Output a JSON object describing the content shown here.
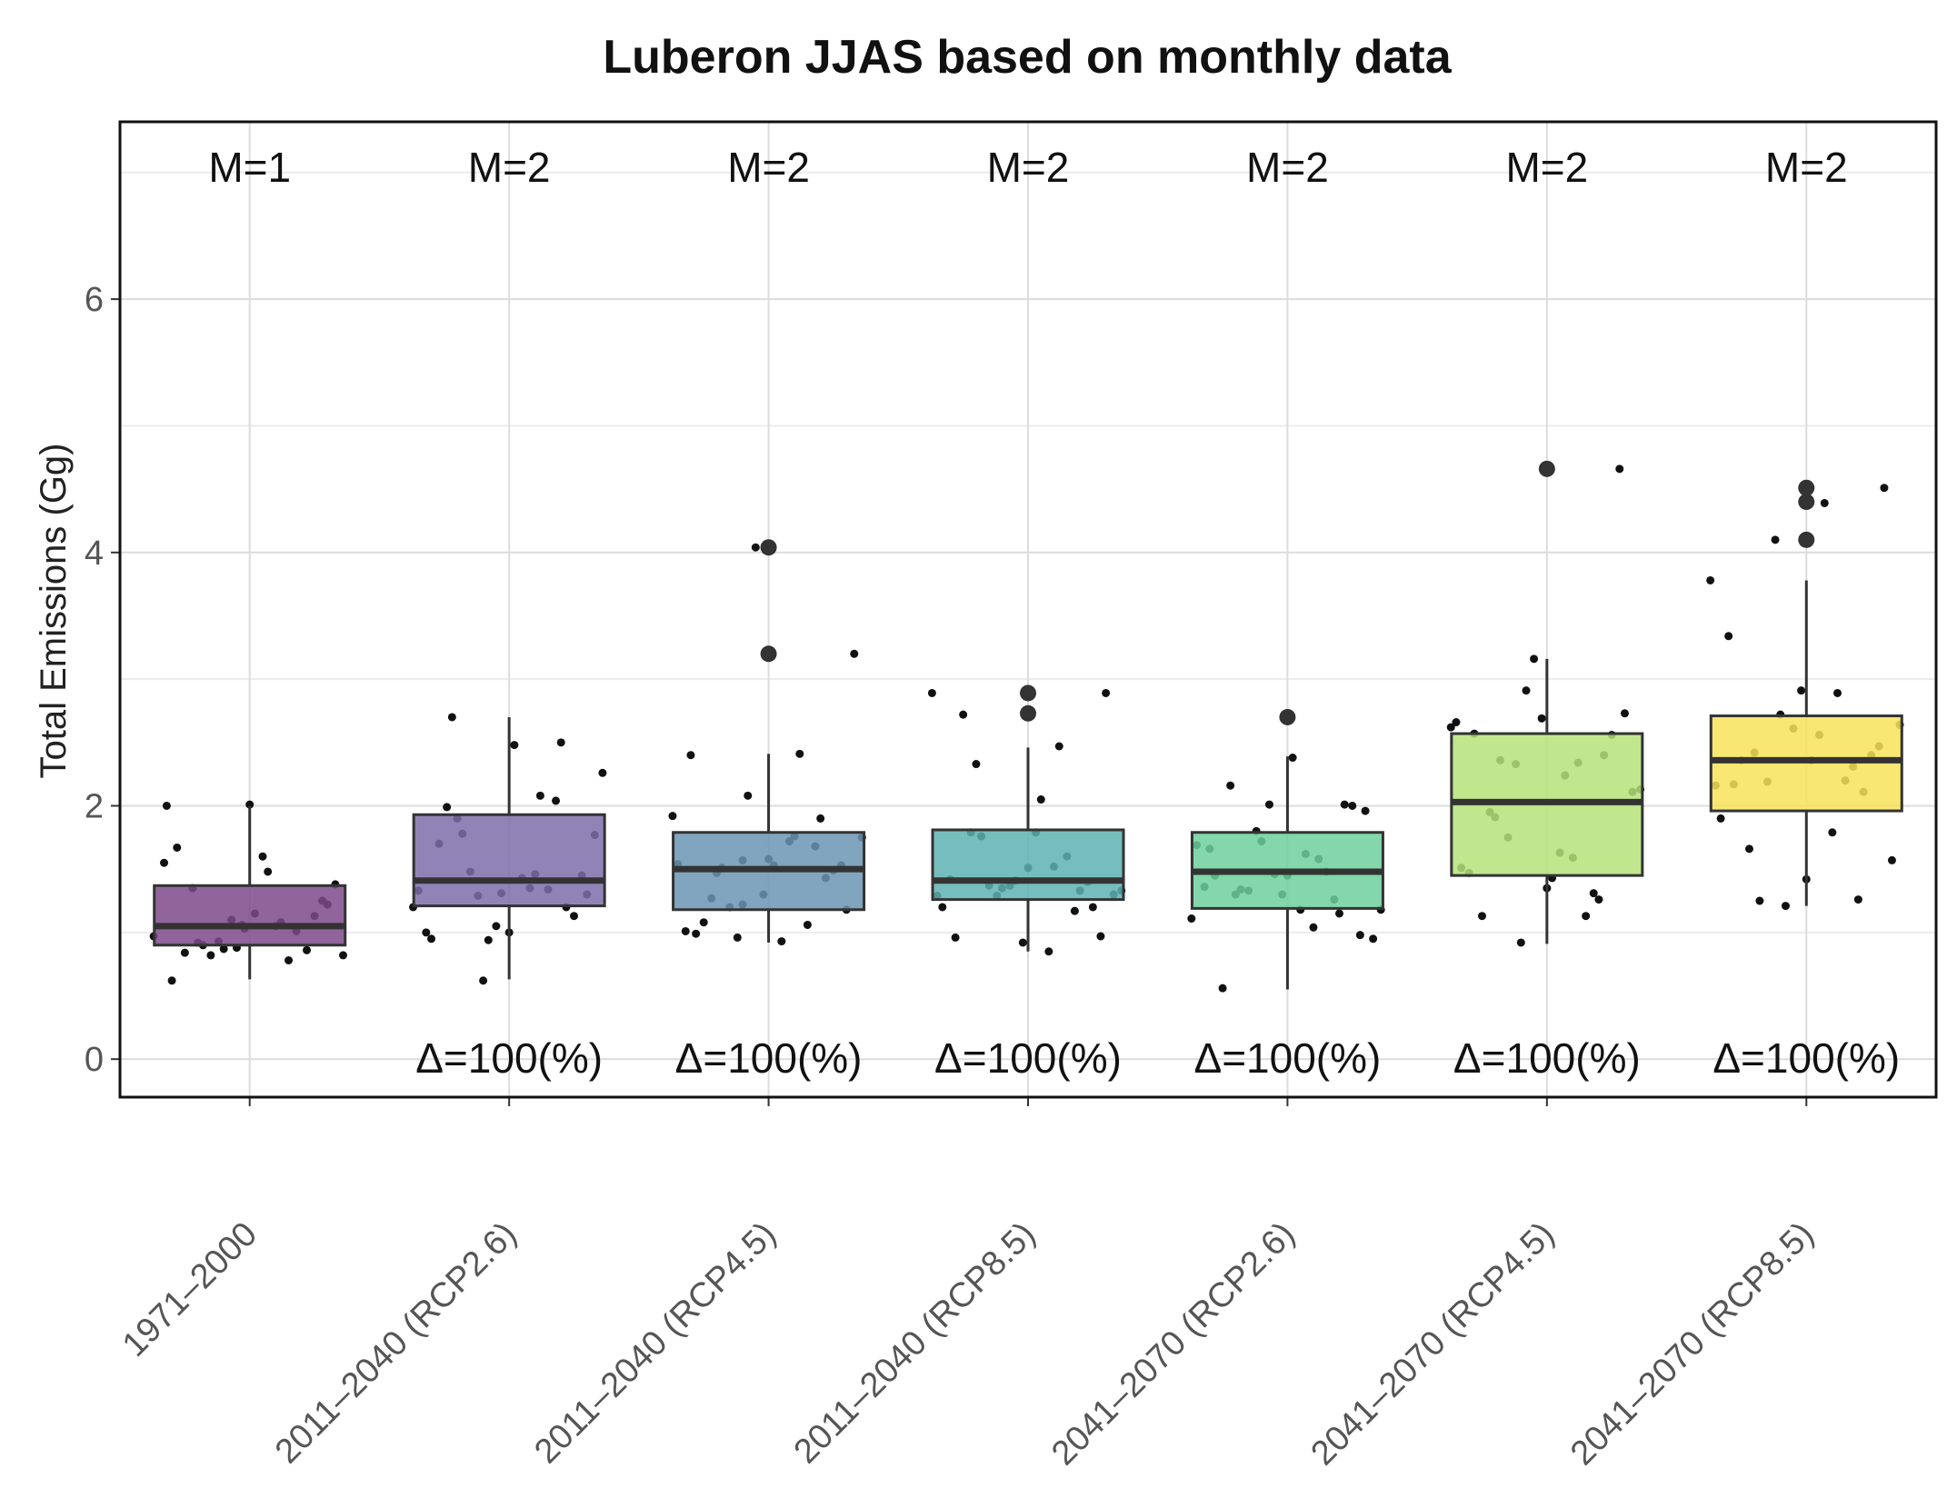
{
  "chart_data": {
    "type": "box",
    "title": "Luberon JJAS based on monthly data",
    "xlabel": "",
    "ylabel": "Total Emissions (Gg)",
    "ylim": [
      -0.3,
      7.4
    ],
    "yticks": [
      0,
      2,
      4,
      6
    ],
    "grid": true,
    "categories": [
      "1971–2000",
      "2011–2040 (RCP2.6)",
      "2011–2040 (RCP4.5)",
      "2011–2040 (RCP8.5)",
      "2041–2070 (RCP2.6)",
      "2041–2070 (RCP4.5)",
      "2041–2070 (RCP8.5)"
    ],
    "colors": [
      "#7e4a8a",
      "#7d6faa",
      "#6b95b4",
      "#5eb1b1",
      "#6dd09b",
      "#b5e27a",
      "#f7e35a"
    ],
    "top_labels": [
      "M=1",
      "M=2",
      "M=2",
      "M=2",
      "M=2",
      "M=2",
      "M=2"
    ],
    "bottom_labels": [
      "",
      "Δ=100(%)",
      "Δ=100(%)",
      "Δ=100(%)",
      "Δ=100(%)",
      "Δ=100(%)",
      "Δ=100(%)"
    ],
    "boxes": [
      {
        "q1": 0.9,
        "median": 1.05,
        "q3": 1.37,
        "whisker_low": 0.63,
        "whisker_high": 2.0,
        "outliers": []
      },
      {
        "q1": 1.21,
        "median": 1.41,
        "q3": 1.93,
        "whisker_low": 0.63,
        "whisker_high": 2.7,
        "outliers": []
      },
      {
        "q1": 1.18,
        "median": 1.5,
        "q3": 1.79,
        "whisker_low": 0.92,
        "whisker_high": 2.41,
        "outliers": [
          3.2,
          4.04
        ]
      },
      {
        "q1": 1.26,
        "median": 1.41,
        "q3": 1.81,
        "whisker_low": 0.85,
        "whisker_high": 2.46,
        "outliers": [
          2.73,
          2.89
        ]
      },
      {
        "q1": 1.19,
        "median": 1.48,
        "q3": 1.79,
        "whisker_low": 0.55,
        "whisker_high": 2.39,
        "outliers": [
          2.7
        ]
      },
      {
        "q1": 1.45,
        "median": 2.03,
        "q3": 2.57,
        "whisker_low": 0.91,
        "whisker_high": 3.16,
        "outliers": [
          4.66
        ]
      },
      {
        "q1": 1.96,
        "median": 2.36,
        "q3": 2.71,
        "whisker_low": 1.21,
        "whisker_high": 3.78,
        "outliers": [
          4.1,
          4.4,
          4.51
        ]
      }
    ],
    "points": [
      {
        "dx": [
          -0.37,
          -0.33,
          -0.32,
          -0.3,
          -0.28,
          -0.25,
          -0.22,
          -0.2,
          -0.18,
          -0.15,
          -0.12,
          -0.1,
          -0.07,
          -0.05,
          -0.03,
          0,
          0.02,
          0.05,
          0.07,
          0.1,
          0.12,
          0.15,
          0.18,
          0.22,
          0.25,
          0.28,
          0.3,
          0.33,
          0.36,
          -0.02
        ],
        "y": [
          0.97,
          1.55,
          2.0,
          0.62,
          1.67,
          0.84,
          1.35,
          0.92,
          0.9,
          0.82,
          0.93,
          0.87,
          1.1,
          0.88,
          1.06,
          2.01,
          1.15,
          1.6,
          1.48,
          1.05,
          1.08,
          0.78,
          1.01,
          0.86,
          1.13,
          1.25,
          1.22,
          1.38,
          0.82,
          1.03
        ]
      },
      {
        "dx": [
          -0.37,
          -0.35,
          -0.32,
          -0.3,
          -0.27,
          -0.24,
          -0.22,
          -0.2,
          -0.18,
          -0.15,
          -0.12,
          -0.1,
          -0.08,
          -0.05,
          -0.03,
          0,
          0.02,
          0.05,
          0.08,
          0.1,
          0.12,
          0.15,
          0.18,
          0.2,
          0.22,
          0.25,
          0.28,
          0.3,
          0.33,
          0.36
        ],
        "y": [
          1.2,
          1.33,
          1.0,
          0.95,
          1.7,
          1.99,
          2.7,
          1.9,
          1.78,
          1.48,
          1.29,
          0.62,
          0.94,
          1.05,
          1.31,
          1.0,
          2.48,
          1.43,
          1.35,
          1.46,
          2.08,
          1.34,
          2.04,
          2.5,
          1.2,
          1.13,
          1.45,
          1.3,
          1.77,
          2.26
        ]
      },
      {
        "dx": [
          -0.37,
          -0.35,
          -0.32,
          -0.3,
          -0.28,
          -0.25,
          -0.22,
          -0.2,
          -0.18,
          -0.15,
          -0.12,
          -0.1,
          -0.08,
          -0.05,
          -0.02,
          0,
          0.02,
          0.05,
          0.08,
          0.1,
          0.12,
          0.15,
          0.18,
          0.2,
          0.22,
          0.25,
          0.28,
          0.3,
          0.33,
          0.36,
          -0.1
        ],
        "y": [
          1.92,
          1.54,
          1.01,
          2.4,
          0.99,
          1.08,
          1.27,
          1.47,
          1.51,
          1.2,
          0.96,
          1.22,
          2.08,
          4.04,
          1.3,
          1.58,
          1.53,
          0.93,
          1.72,
          1.76,
          2.41,
          1.06,
          1.68,
          1.9,
          1.43,
          1.49,
          1.53,
          1.18,
          3.2,
          1.75,
          1.57
        ]
      },
      {
        "dx": [
          -0.37,
          -0.35,
          -0.33,
          -0.3,
          -0.28,
          -0.25,
          -0.22,
          -0.2,
          -0.18,
          -0.15,
          -0.12,
          -0.1,
          -0.07,
          -0.05,
          -0.02,
          0,
          0.03,
          0.05,
          0.08,
          0.1,
          0.12,
          0.15,
          0.18,
          0.2,
          0.23,
          0.25,
          0.28,
          0.3,
          0.33,
          0.36
        ],
        "y": [
          2.89,
          1.29,
          1.2,
          1.42,
          0.96,
          2.72,
          1.79,
          2.33,
          1.76,
          1.37,
          1.29,
          1.35,
          1.37,
          1.41,
          0.92,
          1.51,
          1.79,
          2.05,
          0.85,
          1.52,
          2.47,
          1.6,
          1.17,
          1.33,
          1.4,
          1.2,
          0.97,
          2.89,
          1.3,
          1.33
        ]
      },
      {
        "dx": [
          -0.37,
          -0.35,
          -0.32,
          -0.3,
          -0.28,
          -0.25,
          -0.22,
          -0.2,
          -0.18,
          -0.15,
          -0.12,
          -0.1,
          -0.07,
          -0.05,
          -0.02,
          0,
          0.02,
          0.05,
          0.07,
          0.1,
          0.12,
          0.15,
          0.18,
          0.2,
          0.22,
          0.25,
          0.28,
          0.3,
          0.33,
          0.36
        ],
        "y": [
          1.11,
          1.69,
          1.36,
          1.66,
          1.45,
          0.56,
          2.16,
          1.3,
          1.34,
          1.33,
          1.8,
          1.72,
          2.01,
          1.46,
          1.3,
          1.45,
          2.38,
          1.18,
          1.62,
          1.04,
          1.58,
          1.48,
          1.26,
          1.15,
          2.01,
          2.0,
          0.98,
          1.96,
          0.95,
          1.18
        ]
      },
      {
        "dx": [
          -0.37,
          -0.35,
          -0.33,
          -0.3,
          -0.28,
          -0.25,
          -0.22,
          -0.2,
          -0.18,
          -0.15,
          -0.12,
          -0.1,
          -0.08,
          -0.05,
          -0.02,
          0,
          0.02,
          0.05,
          0.07,
          0.1,
          0.12,
          0.15,
          0.18,
          0.2,
          0.22,
          0.25,
          0.28,
          0.3,
          0.33,
          0.36
        ],
        "y": [
          2.62,
          2.66,
          1.51,
          1.47,
          2.57,
          1.13,
          1.95,
          1.91,
          2.36,
          1.75,
          2.33,
          0.92,
          2.91,
          3.16,
          2.69,
          1.35,
          1.43,
          1.63,
          2.24,
          1.59,
          2.34,
          1.13,
          1.31,
          1.26,
          2.4,
          2.56,
          4.66,
          2.73,
          2.11,
          2.13
        ]
      },
      {
        "dx": [
          -0.37,
          -0.35,
          -0.33,
          -0.3,
          -0.28,
          -0.25,
          -0.22,
          -0.2,
          -0.18,
          -0.15,
          -0.12,
          -0.1,
          -0.08,
          -0.05,
          -0.02,
          0,
          0.02,
          0.05,
          0.07,
          0.1,
          0.12,
          0.15,
          0.18,
          0.2,
          0.22,
          0.25,
          0.28,
          0.3,
          0.33,
          0.36
        ],
        "y": [
          3.78,
          2.16,
          1.9,
          3.34,
          2.17,
          2.36,
          1.66,
          2.42,
          1.25,
          2.19,
          4.1,
          2.72,
          1.21,
          2.61,
          2.91,
          1.42,
          2.36,
          2.56,
          4.39,
          1.79,
          2.89,
          2.2,
          2.31,
          1.26,
          2.11,
          2.4,
          2.47,
          4.51,
          1.57,
          2.64
        ]
      }
    ]
  }
}
